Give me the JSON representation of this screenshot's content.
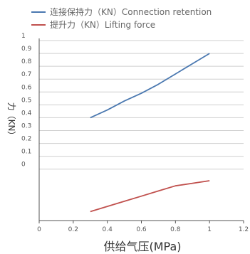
{
  "chart_data": {
    "type": "line",
    "title": "",
    "xlabel": "供给气压(MPa)",
    "ylabel": "力（KN）",
    "xlim": [
      0,
      1.2
    ],
    "ylim": [
      -0.4,
      1
    ],
    "x_ticks": [
      "0",
      "0.2",
      "0.4",
      "0.6",
      "0.8",
      "1",
      "1.2"
    ],
    "y_ticks": [
      "1",
      "0.9",
      "0.8",
      "0.7",
      "0.6",
      "0.5",
      "0.4",
      "0.3",
      "0.2",
      "0.1",
      "0"
    ],
    "grid": "horizontal",
    "legend_position": "top-left",
    "series": [
      {
        "name": "连接保持力（KN）Connection retention",
        "color": "#4a78b0",
        "points": [
          [
            0.3,
            0.4
          ],
          [
            0.4,
            0.46
          ],
          [
            0.5,
            0.53
          ],
          [
            0.6,
            0.59
          ],
          [
            0.7,
            0.66
          ],
          [
            0.8,
            0.74
          ],
          [
            0.9,
            0.82
          ],
          [
            1.0,
            0.9
          ]
        ]
      },
      {
        "name": "提升力（KN）Lifting force",
        "color": "#c0504d",
        "points": [
          [
            0.3,
            -0.33
          ],
          [
            0.4,
            -0.29
          ],
          [
            0.5,
            -0.25
          ],
          [
            0.6,
            -0.21
          ],
          [
            0.7,
            -0.17
          ],
          [
            0.8,
            -0.13
          ],
          [
            0.9,
            -0.11
          ],
          [
            1.0,
            -0.09
          ]
        ]
      }
    ]
  }
}
